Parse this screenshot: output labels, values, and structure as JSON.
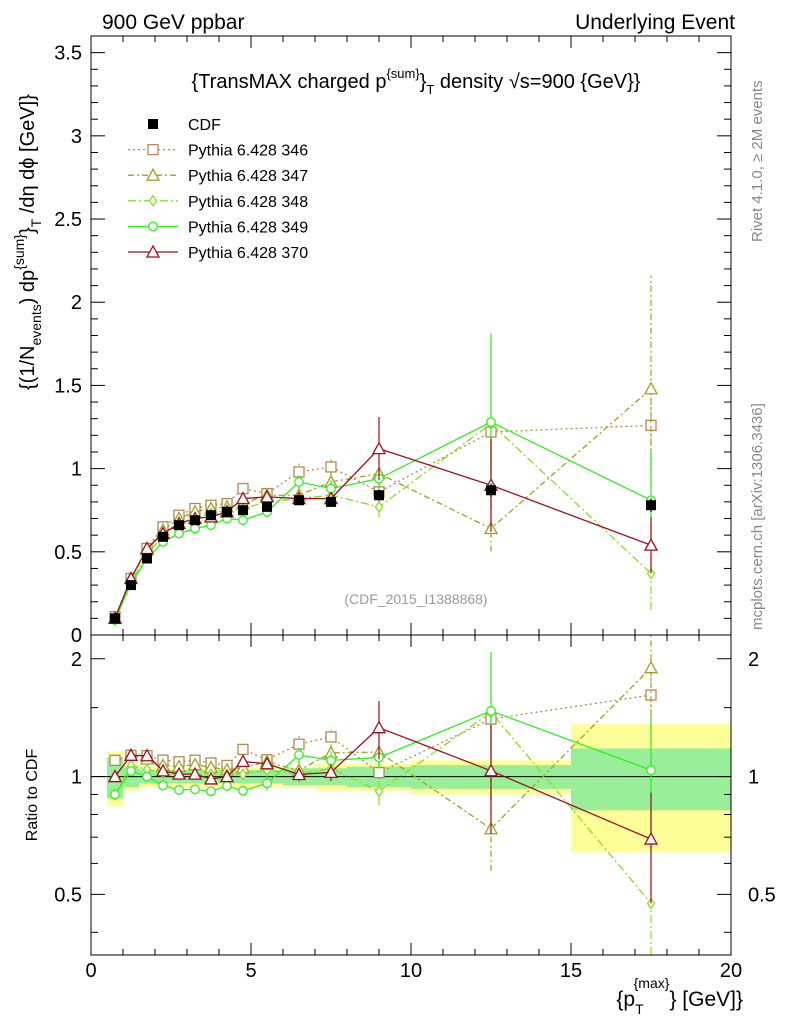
{
  "header": {
    "left": "900 GeV ppbar",
    "right": "Underlying Event"
  },
  "side": {
    "rivet": "Rivet 4.1.0, ≥ 2M events",
    "mcplots": "mcplots.cern.ch [arXiv:1306.3436]"
  },
  "chart_data": {
    "type": "line",
    "title": {
      "a": "{TransMAX charged p",
      "sup": "{sum}",
      "b": "}",
      "sub": "T",
      "c": " density √s=900 {GeV}}"
    },
    "analysis": "(CDF_2015_I1388868)",
    "ylabel": {
      "a": "{(1/N",
      "sub1": "events",
      "b": ") dp",
      "sup": "{sum}",
      "c": "}",
      "sub2": "T",
      "d": " /dη  dϕ [GeV]}"
    },
    "ratio_ylabel": "Ratio to CDF",
    "xlabel": {
      "a": "{p",
      "sub": "T",
      "sup": "{max}",
      "b": "} [GeV]}"
    },
    "xlim": [
      0,
      20
    ],
    "ylim": [
      0,
      3.6
    ],
    "ratio_ylim": [
      0.35,
      2.3
    ],
    "xticks": [
      "0",
      "5",
      "10",
      "15",
      "20"
    ],
    "xtick_values": [
      0,
      5,
      10,
      15,
      20
    ],
    "yticks": [
      "0",
      "0.5",
      "1",
      "1.5",
      "2",
      "2.5",
      "3",
      "3.5"
    ],
    "ytick_values": [
      0,
      0.5,
      1,
      1.5,
      2,
      2.5,
      3,
      3.5
    ],
    "ratio_yticks": [
      "0.5",
      "1",
      "2"
    ],
    "ratio_ytick_values": [
      0.5,
      1,
      2
    ],
    "x": [
      0.75,
      1.25,
      1.75,
      2.25,
      2.75,
      3.25,
      3.75,
      4.25,
      4.75,
      5.5,
      6.5,
      7.5,
      9.0,
      12.5,
      17.5
    ],
    "bins": [
      [
        0.5,
        1.0
      ],
      [
        1.0,
        1.5
      ],
      [
        1.5,
        2.0
      ],
      [
        2.0,
        2.5
      ],
      [
        2.5,
        3.0
      ],
      [
        3.0,
        3.5
      ],
      [
        3.5,
        4.0
      ],
      [
        4.0,
        4.5
      ],
      [
        4.5,
        5.0
      ],
      [
        5.0,
        6.0
      ],
      [
        6.0,
        7.0
      ],
      [
        7.0,
        8.0
      ],
      [
        8.0,
        10.0
      ],
      [
        10.0,
        15.0
      ],
      [
        15.0,
        20.0
      ]
    ],
    "data": {
      "name": "CDF",
      "values": [
        0.1,
        0.3,
        0.46,
        0.59,
        0.66,
        0.69,
        0.72,
        0.74,
        0.75,
        0.77,
        0.81,
        0.8,
        0.84,
        0.87,
        0.78
      ],
      "errors": [
        0.005,
        0.01,
        0.01,
        0.01,
        0.015,
        0.015,
        0.015,
        0.02,
        0.02,
        0.02,
        0.03,
        0.03,
        0.035,
        0.04,
        0.04
      ],
      "ratio_err_inner": [
        0.12,
        0.06,
        0.04,
        0.04,
        0.04,
        0.04,
        0.04,
        0.04,
        0.04,
        0.04,
        0.05,
        0.05,
        0.06,
        0.07,
        0.18
      ],
      "ratio_err_outer": [
        0.16,
        0.08,
        0.06,
        0.06,
        0.06,
        0.06,
        0.06,
        0.06,
        0.06,
        0.06,
        0.06,
        0.08,
        0.08,
        0.1,
        0.36
      ]
    },
    "series": [
      {
        "name": "Pythia 6.428 346",
        "color": "#b08a50",
        "dash": "2,3",
        "marker": "square",
        "values": [
          0.11,
          0.34,
          0.52,
          0.65,
          0.72,
          0.76,
          0.78,
          0.79,
          0.88,
          0.85,
          0.98,
          1.01,
          0.86,
          1.22,
          1.26
        ],
        "errors": [
          0,
          0,
          0,
          0,
          0.01,
          0.01,
          0.01,
          0.02,
          0.02,
          0.02,
          0.05,
          0.06,
          0.08,
          0.25,
          0.3
        ]
      },
      {
        "name": "Pythia 6.428 347",
        "color": "#a0a020",
        "dash": "6,3,2,3",
        "marker": "triangle",
        "values": [
          0.1,
          0.34,
          0.51,
          0.63,
          0.7,
          0.74,
          0.76,
          0.77,
          0.79,
          0.84,
          0.84,
          0.92,
          0.97,
          0.64,
          1.48
        ],
        "errors": [
          0,
          0,
          0,
          0,
          0.01,
          0.01,
          0.01,
          0.02,
          0.02,
          0.03,
          0.05,
          0.06,
          0.08,
          0.14,
          0.68
        ]
      },
      {
        "name": "Pythia 6.428 348",
        "color": "#88dd22",
        "dash": "8,3,2,3",
        "marker": "diamond",
        "values": [
          0.09,
          0.32,
          0.48,
          0.6,
          0.67,
          0.7,
          0.73,
          0.75,
          0.76,
          0.8,
          0.82,
          0.84,
          0.77,
          1.27,
          0.37
        ],
        "errors": [
          0,
          0,
          0,
          0,
          0.01,
          0.01,
          0.01,
          0.02,
          0.02,
          0.03,
          0.04,
          0.05,
          0.06,
          0.5,
          0.22
        ]
      },
      {
        "name": "Pythia 6.428 349",
        "color": "#33ee22",
        "dash": "none",
        "marker": "circle",
        "values": [
          0.09,
          0.31,
          0.46,
          0.56,
          0.61,
          0.64,
          0.66,
          0.7,
          0.69,
          0.74,
          0.92,
          0.88,
          0.94,
          1.28,
          0.81
        ],
        "errors": [
          0,
          0,
          0,
          0,
          0.01,
          0.01,
          0.01,
          0.02,
          0.02,
          0.03,
          0.04,
          0.05,
          0.06,
          0.53,
          0.3
        ]
      },
      {
        "name": "Pythia 6.428 370",
        "color": "#991122",
        "dash": "none",
        "marker": "triangle",
        "values": [
          0.1,
          0.34,
          0.52,
          0.61,
          0.67,
          0.7,
          0.71,
          0.74,
          0.82,
          0.83,
          0.82,
          0.82,
          1.12,
          0.9,
          0.54
        ],
        "errors": [
          0,
          0,
          0,
          0,
          0.01,
          0.01,
          0.01,
          0.02,
          0.02,
          0.03,
          0.03,
          0.04,
          0.19,
          0.28,
          0.17
        ]
      }
    ]
  }
}
